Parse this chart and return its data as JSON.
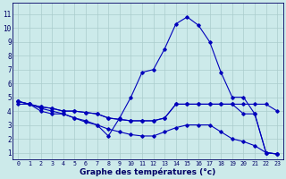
{
  "title": "Graphe des températures (°c)",
  "background_color": "#cceaea",
  "grid_color": "#aacccc",
  "line_color": "#0000bb",
  "x_labels": [
    "0",
    "1",
    "2",
    "3",
    "4",
    "5",
    "6",
    "7",
    "8",
    "9",
    "10",
    "11",
    "12",
    "13",
    "14",
    "15",
    "16",
    "17",
    "18",
    "19",
    "20",
    "21",
    "22",
    "23"
  ],
  "y_ticks": [
    1,
    2,
    3,
    4,
    5,
    6,
    7,
    8,
    9,
    10,
    11
  ],
  "ylim": [
    0.5,
    11.8
  ],
  "xlim": [
    -0.5,
    23.5
  ],
  "series": [
    [
      4.5,
      4.5,
      4.0,
      3.8,
      3.8,
      3.5,
      3.2,
      3.0,
      2.2,
      3.5,
      5.0,
      6.8,
      7.0,
      8.5,
      10.3,
      10.8,
      10.2,
      9.0,
      6.8,
      5.0,
      5.0,
      3.8,
      1.0,
      0.9
    ],
    [
      4.7,
      4.5,
      4.3,
      4.2,
      4.0,
      4.0,
      3.9,
      3.8,
      3.5,
      3.4,
      3.3,
      3.3,
      3.3,
      3.5,
      4.5,
      4.5,
      4.5,
      4.5,
      4.5,
      4.5,
      4.5,
      4.5,
      4.5,
      4.0
    ],
    [
      4.7,
      4.5,
      4.3,
      4.2,
      4.0,
      4.0,
      3.9,
      3.8,
      3.5,
      3.4,
      3.3,
      3.3,
      3.3,
      3.5,
      4.5,
      4.5,
      4.5,
      4.5,
      4.5,
      4.5,
      3.8,
      3.8,
      1.0,
      0.9
    ],
    [
      4.7,
      4.5,
      4.2,
      4.0,
      3.8,
      3.5,
      3.3,
      3.0,
      2.7,
      2.5,
      2.3,
      2.2,
      2.2,
      2.5,
      2.8,
      3.0,
      3.0,
      3.0,
      2.5,
      2.0,
      1.8,
      1.5,
      1.0,
      0.9
    ]
  ]
}
